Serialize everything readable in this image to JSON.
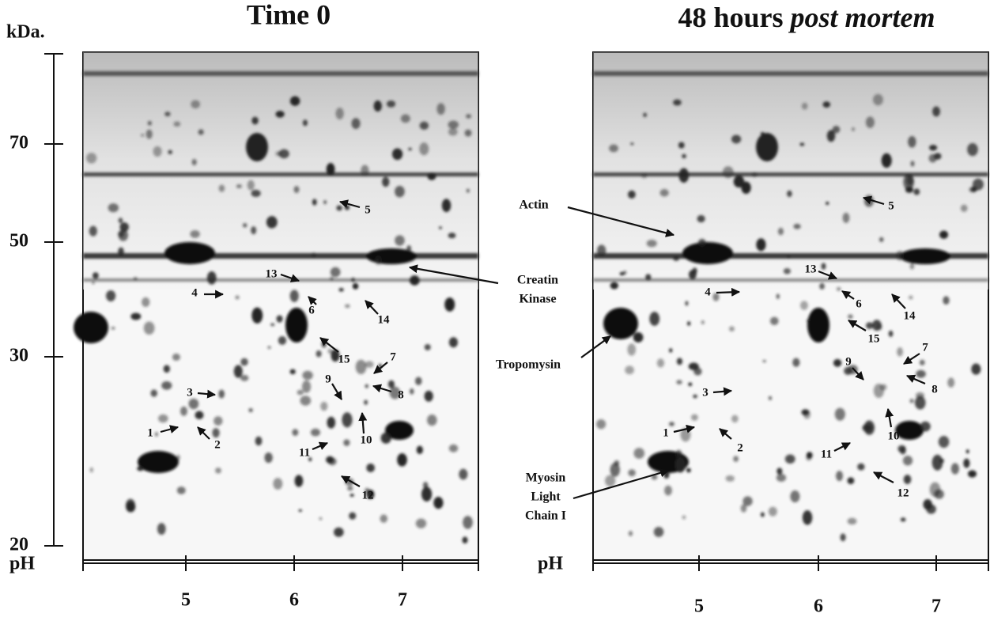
{
  "axes": {
    "y_label": "kDa.",
    "y_ticks": [
      "70",
      "50",
      "30",
      "20"
    ]
  },
  "panels": [
    {
      "title": "Time 0",
      "x_label": "pH",
      "x_ticks": [
        "5",
        "6",
        "7"
      ],
      "spots": [
        "1",
        "2",
        "3",
        "4",
        "5",
        "6",
        "7",
        "8",
        "9",
        "10",
        "11",
        "12",
        "13",
        "14",
        "15"
      ]
    },
    {
      "title": "48 hours",
      "title_italic": "post mortem",
      "x_label": "pH",
      "x_ticks": [
        "5",
        "6",
        "7"
      ],
      "spots": [
        "1",
        "2",
        "3",
        "4",
        "5",
        "6",
        "7",
        "8",
        "9",
        "10",
        "11",
        "12",
        "13",
        "14",
        "15"
      ]
    }
  ],
  "annotations": {
    "actin": "Actin",
    "creatin_kinase": [
      "Creatin",
      "Kinase"
    ],
    "tropomysin": "Tropomysin",
    "myosin": [
      "Myosin",
      "Light",
      "Chain I"
    ]
  }
}
